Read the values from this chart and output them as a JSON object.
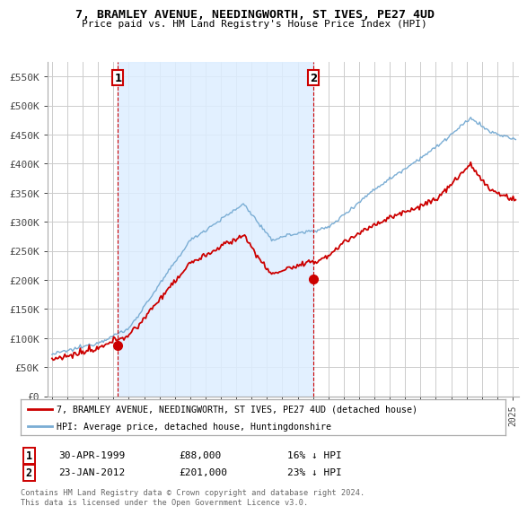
{
  "title": "7, BRAMLEY AVENUE, NEEDINGWORTH, ST IVES, PE27 4UD",
  "subtitle": "Price paid vs. HM Land Registry's House Price Index (HPI)",
  "legend_line1": "7, BRAMLEY AVENUE, NEEDINGWORTH, ST IVES, PE27 4UD (detached house)",
  "legend_line2": "HPI: Average price, detached house, Huntingdonshire",
  "footnote": "Contains HM Land Registry data © Crown copyright and database right 2024.\nThis data is licensed under the Open Government Licence v3.0.",
  "sale1_date": "30-APR-1999",
  "sale1_price": "£88,000",
  "sale1_hpi": "16% ↓ HPI",
  "sale2_date": "23-JAN-2012",
  "sale2_price": "£201,000",
  "sale2_hpi": "23% ↓ HPI",
  "red_color": "#cc0000",
  "blue_color": "#7aadd4",
  "fill_color": "#ddeeff",
  "background_color": "#ffffff",
  "grid_color": "#cccccc",
  "ylim": [
    0,
    575000
  ],
  "yticks": [
    0,
    50000,
    100000,
    150000,
    200000,
    250000,
    300000,
    350000,
    400000,
    450000,
    500000,
    550000
  ],
  "ytick_labels": [
    "£0",
    "£50K",
    "£100K",
    "£150K",
    "£200K",
    "£250K",
    "£300K",
    "£350K",
    "£400K",
    "£450K",
    "£500K",
    "£550K"
  ],
  "sale1_year": 1999.29,
  "sale1_price_val": 88000,
  "sale2_year": 2012.04,
  "sale2_price_val": 201000
}
